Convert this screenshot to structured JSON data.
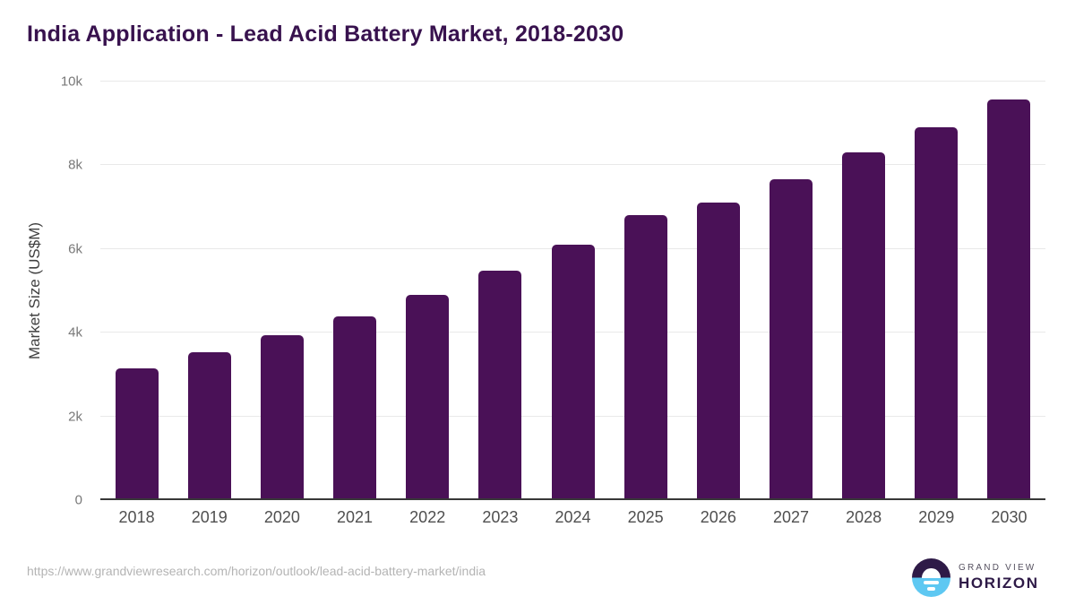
{
  "chart_data": {
    "type": "bar",
    "title": "India Application - Lead Acid Battery Market, 2018-2030",
    "categories": [
      "2018",
      "2019",
      "2020",
      "2021",
      "2022",
      "2023",
      "2024",
      "2025",
      "2026",
      "2027",
      "2028",
      "2029",
      "2030"
    ],
    "values": [
      3150,
      3530,
      3950,
      4400,
      4900,
      5480,
      6100,
      6820,
      7100,
      7670,
      8300,
      8900,
      9580
    ],
    "xlabel": "",
    "ylabel": "Market Size (US$M)",
    "ylim": [
      0,
      10000
    ],
    "yticks": [
      "0",
      "2k",
      "4k",
      "6k",
      "8k",
      "10k"
    ],
    "ytick_values": [
      0,
      2000,
      4000,
      6000,
      8000,
      10000
    ],
    "grid": true,
    "legend": "none",
    "bar_color": "#4a1157"
  },
  "colors": {
    "title_text": "#38124e",
    "bar": "#4a1157",
    "gridline": "#e9e9e9",
    "axis_line": "#383838",
    "x_tick_text": "#4f4f4f",
    "y_tick_text": "#787878",
    "url_text": "#b4b4b4",
    "logo_dark_purple": "#2e1a47",
    "logo_sky_blue": "#5ec8f2"
  },
  "footer": {
    "source_url": "https://www.grandviewresearch.com/horizon/outlook/lead-acid-battery-market/india",
    "logo_line1": "GRAND VIEW",
    "logo_line2": "HORIZON"
  }
}
